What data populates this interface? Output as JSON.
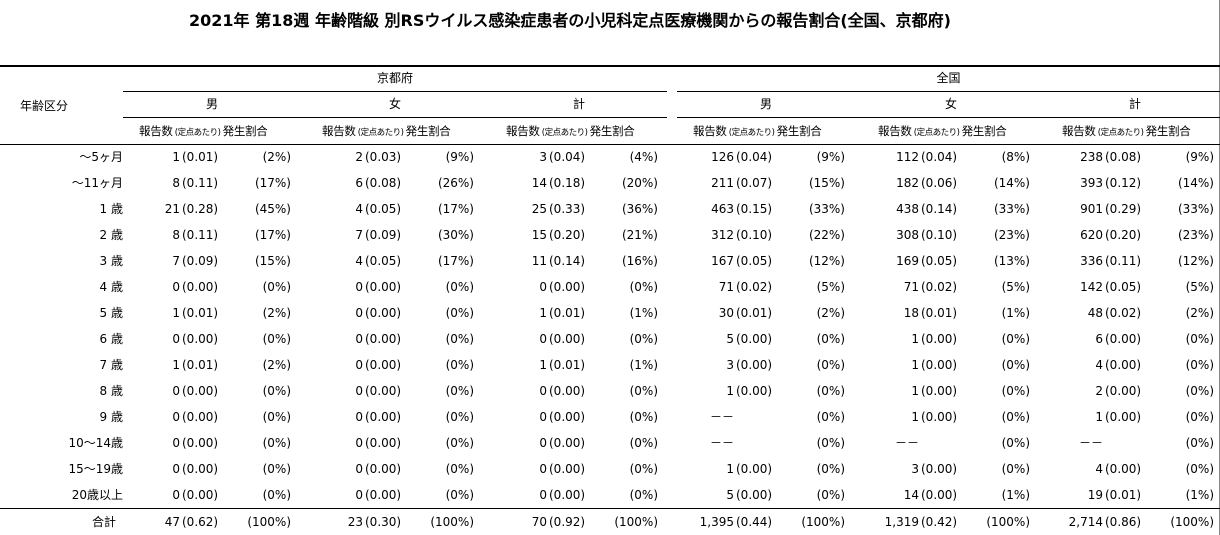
{
  "title": "2021年 第18週 年齢階級 別RSウイルス感染症患者の小児科定点医療機関からの報告割合(全国、京都府)",
  "header": {
    "age_label": "年齢区分",
    "region_kyoto": "京都府",
    "region_national": "全国",
    "sex_male": "男",
    "sex_female": "女",
    "sex_total": "計",
    "col_count": "報告数",
    "col_per_site": "(定点あたり)",
    "col_rate": "発生割合"
  },
  "rows": [
    {
      "age": "～5ヶ月",
      "kyoto": [
        [
          "1",
          "(0.01)",
          "(2%)"
        ],
        [
          "2",
          "(0.03)",
          "(9%)"
        ],
        [
          "3",
          "(0.04)",
          "(4%)"
        ]
      ],
      "national": [
        [
          "126",
          "(0.04)",
          "(9%)"
        ],
        [
          "112",
          "(0.04)",
          "(8%)"
        ],
        [
          "238",
          "(0.08)",
          "(9%)"
        ]
      ]
    },
    {
      "age": "～11ヶ月",
      "kyoto": [
        [
          "8",
          "(0.11)",
          "(17%)"
        ],
        [
          "6",
          "(0.08)",
          "(26%)"
        ],
        [
          "14",
          "(0.18)",
          "(20%)"
        ]
      ],
      "national": [
        [
          "211",
          "(0.07)",
          "(15%)"
        ],
        [
          "182",
          "(0.06)",
          "(14%)"
        ],
        [
          "393",
          "(0.12)",
          "(14%)"
        ]
      ]
    },
    {
      "age": "1 歳",
      "kyoto": [
        [
          "21",
          "(0.28)",
          "(45%)"
        ],
        [
          "4",
          "(0.05)",
          "(17%)"
        ],
        [
          "25",
          "(0.33)",
          "(36%)"
        ]
      ],
      "national": [
        [
          "463",
          "(0.15)",
          "(33%)"
        ],
        [
          "438",
          "(0.14)",
          "(33%)"
        ],
        [
          "901",
          "(0.29)",
          "(33%)"
        ]
      ]
    },
    {
      "age": "2 歳",
      "kyoto": [
        [
          "8",
          "(0.11)",
          "(17%)"
        ],
        [
          "7",
          "(0.09)",
          "(30%)"
        ],
        [
          "15",
          "(0.20)",
          "(21%)"
        ]
      ],
      "national": [
        [
          "312",
          "(0.10)",
          "(22%)"
        ],
        [
          "308",
          "(0.10)",
          "(23%)"
        ],
        [
          "620",
          "(0.20)",
          "(23%)"
        ]
      ]
    },
    {
      "age": "3 歳",
      "kyoto": [
        [
          "7",
          "(0.09)",
          "(15%)"
        ],
        [
          "4",
          "(0.05)",
          "(17%)"
        ],
        [
          "11",
          "(0.14)",
          "(16%)"
        ]
      ],
      "national": [
        [
          "167",
          "(0.05)",
          "(12%)"
        ],
        [
          "169",
          "(0.05)",
          "(13%)"
        ],
        [
          "336",
          "(0.11)",
          "(12%)"
        ]
      ]
    },
    {
      "age": "4 歳",
      "kyoto": [
        [
          "0",
          "(0.00)",
          "(0%)"
        ],
        [
          "0",
          "(0.00)",
          "(0%)"
        ],
        [
          "0",
          "(0.00)",
          "(0%)"
        ]
      ],
      "national": [
        [
          "71",
          "(0.02)",
          "(5%)"
        ],
        [
          "71",
          "(0.02)",
          "(5%)"
        ],
        [
          "142",
          "(0.05)",
          "(5%)"
        ]
      ]
    },
    {
      "age": "5 歳",
      "kyoto": [
        [
          "1",
          "(0.01)",
          "(2%)"
        ],
        [
          "0",
          "(0.00)",
          "(0%)"
        ],
        [
          "1",
          "(0.01)",
          "(1%)"
        ]
      ],
      "national": [
        [
          "30",
          "(0.01)",
          "(2%)"
        ],
        [
          "18",
          "(0.01)",
          "(1%)"
        ],
        [
          "48",
          "(0.02)",
          "(2%)"
        ]
      ]
    },
    {
      "age": "6 歳",
      "kyoto": [
        [
          "0",
          "(0.00)",
          "(0%)"
        ],
        [
          "0",
          "(0.00)",
          "(0%)"
        ],
        [
          "0",
          "(0.00)",
          "(0%)"
        ]
      ],
      "national": [
        [
          "5",
          "(0.00)",
          "(0%)"
        ],
        [
          "1",
          "(0.00)",
          "(0%)"
        ],
        [
          "6",
          "(0.00)",
          "(0%)"
        ]
      ]
    },
    {
      "age": "7 歳",
      "kyoto": [
        [
          "1",
          "(0.01)",
          "(2%)"
        ],
        [
          "0",
          "(0.00)",
          "(0%)"
        ],
        [
          "1",
          "(0.01)",
          "(1%)"
        ]
      ],
      "national": [
        [
          "3",
          "(0.00)",
          "(0%)"
        ],
        [
          "1",
          "(0.00)",
          "(0%)"
        ],
        [
          "4",
          "(0.00)",
          "(0%)"
        ]
      ]
    },
    {
      "age": "8 歳",
      "kyoto": [
        [
          "0",
          "(0.00)",
          "(0%)"
        ],
        [
          "0",
          "(0.00)",
          "(0%)"
        ],
        [
          "0",
          "(0.00)",
          "(0%)"
        ]
      ],
      "national": [
        [
          "1",
          "(0.00)",
          "(0%)"
        ],
        [
          "1",
          "(0.00)",
          "(0%)"
        ],
        [
          "2",
          "(0.00)",
          "(0%)"
        ]
      ]
    },
    {
      "age": "9 歳",
      "kyoto": [
        [
          "0",
          "(0.00)",
          "(0%)"
        ],
        [
          "0",
          "(0.00)",
          "(0%)"
        ],
        [
          "0",
          "(0.00)",
          "(0%)"
        ]
      ],
      "national": [
        [
          "－－",
          "",
          "(0%)"
        ],
        [
          "1",
          "(0.00)",
          "(0%)"
        ],
        [
          "1",
          "(0.00)",
          "(0%)"
        ]
      ]
    },
    {
      "age": "10～14歳",
      "kyoto": [
        [
          "0",
          "(0.00)",
          "(0%)"
        ],
        [
          "0",
          "(0.00)",
          "(0%)"
        ],
        [
          "0",
          "(0.00)",
          "(0%)"
        ]
      ],
      "national": [
        [
          "－－",
          "",
          "(0%)"
        ],
        [
          "－－",
          "",
          "(0%)"
        ],
        [
          "－－",
          "",
          "(0%)"
        ]
      ]
    },
    {
      "age": "15～19歳",
      "kyoto": [
        [
          "0",
          "(0.00)",
          "(0%)"
        ],
        [
          "0",
          "(0.00)",
          "(0%)"
        ],
        [
          "0",
          "(0.00)",
          "(0%)"
        ]
      ],
      "national": [
        [
          "1",
          "(0.00)",
          "(0%)"
        ],
        [
          "3",
          "(0.00)",
          "(0%)"
        ],
        [
          "4",
          "(0.00)",
          "(0%)"
        ]
      ]
    },
    {
      "age": "20歳以上",
      "kyoto": [
        [
          "0",
          "(0.00)",
          "(0%)"
        ],
        [
          "0",
          "(0.00)",
          "(0%)"
        ],
        [
          "0",
          "(0.00)",
          "(0%)"
        ]
      ],
      "national": [
        [
          "5",
          "(0.00)",
          "(0%)"
        ],
        [
          "14",
          "(0.00)",
          "(1%)"
        ],
        [
          "19",
          "(0.01)",
          "(1%)"
        ]
      ]
    }
  ],
  "total": {
    "age": "合計",
    "kyoto": [
      [
        "47",
        "(0.62)",
        "(100%)"
      ],
      [
        "23",
        "(0.30)",
        "(100%)"
      ],
      [
        "70",
        "(0.92)",
        "(100%)"
      ]
    ],
    "national": [
      [
        "1,395",
        "(0.44)",
        "(100%)"
      ],
      [
        "1,319",
        "(0.42)",
        "(100%)"
      ],
      [
        "2,714",
        "(0.86)",
        "(100%)"
      ]
    ]
  }
}
